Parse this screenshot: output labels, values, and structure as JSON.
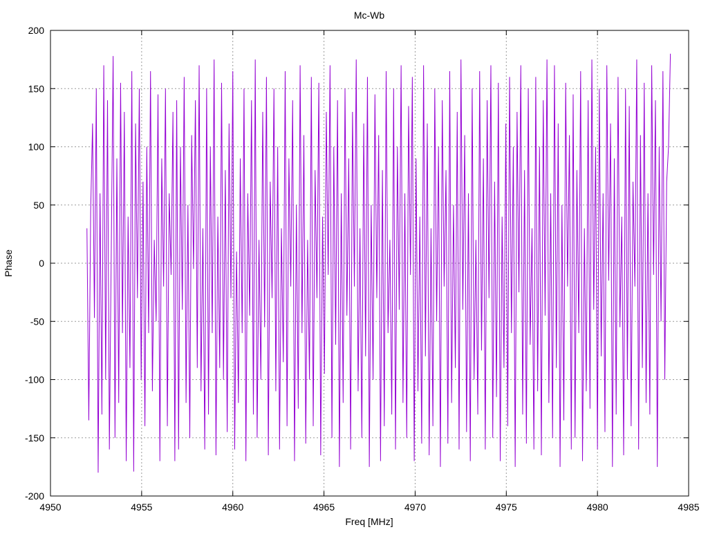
{
  "chart_data": {
    "type": "line",
    "title": "Mc-Wb",
    "xlabel": "Freq [MHz]",
    "ylabel": "Phase",
    "xlim": [
      4950,
      4985
    ],
    "ylim": [
      -200,
      200
    ],
    "x_ticks": [
      4950,
      4955,
      4960,
      4965,
      4970,
      4975,
      4980,
      4985
    ],
    "y_ticks": [
      -200,
      -150,
      -100,
      -50,
      0,
      50,
      100,
      150,
      200
    ],
    "grid": true,
    "series": [
      {
        "name": "Phase",
        "color": "#9400d3",
        "x_start": 4952,
        "x_end": 4984,
        "values": [
          30,
          -135,
          45,
          120,
          -47,
          150,
          -180,
          60,
          -130,
          170,
          -100,
          140,
          -160,
          10,
          178,
          -150,
          90,
          -120,
          155,
          -60,
          130,
          -170,
          40,
          -90,
          165,
          -179,
          120,
          -30,
          150,
          -100,
          70,
          -140,
          100,
          -60,
          165,
          -110,
          20,
          -50,
          145,
          -170,
          90,
          -20,
          150,
          -140,
          60,
          -10,
          130,
          -170,
          140,
          -160,
          100,
          -40,
          160,
          -120,
          50,
          -150,
          110,
          -5,
          140,
          -90,
          170,
          -110,
          30,
          -160,
          150,
          -130,
          100,
          -60,
          175,
          -165,
          40,
          -90,
          155,
          -100,
          80,
          -145,
          120,
          -30,
          165,
          -160,
          10,
          -120,
          90,
          -60,
          150,
          -170,
          60,
          -45,
          140,
          -130,
          175,
          -150,
          20,
          -100,
          130,
          -55,
          160,
          -165,
          70,
          -30,
          150,
          -110,
          100,
          -160,
          30,
          -85,
          165,
          -140,
          90,
          -20,
          140,
          -170,
          50,
          -125,
          170,
          -60,
          110,
          -155,
          20,
          -100,
          160,
          -140,
          80,
          -30,
          155,
          -165,
          40,
          -95,
          130,
          -10,
          170,
          -150,
          100,
          -70,
          140,
          -175,
          60,
          -120,
          150,
          -45,
          90,
          -160,
          130,
          -20,
          175,
          -110,
          30,
          -150,
          120,
          -80,
          160,
          -175,
          50,
          -100,
          145,
          -30,
          110,
          -170,
          80,
          -140,
          165,
          -60,
          20,
          -130,
          150,
          -160,
          100,
          -40,
          170,
          -120,
          60,
          -150,
          135,
          -10,
          160,
          -170,
          90,
          -110,
          40,
          -155,
          170,
          -80,
          120,
          -165,
          30,
          -140,
          150,
          -50,
          100,
          -175,
          140,
          -20,
          80,
          -155,
          165,
          -120,
          50,
          -90,
          130,
          -160,
          175,
          -40,
          110,
          -145,
          60,
          -170,
          150,
          -100,
          20,
          -130,
          165,
          -75,
          90,
          -160,
          140,
          -30,
          170,
          -150,
          70,
          -115,
          155,
          -170,
          40,
          -90,
          120,
          -140,
          160,
          -60,
          100,
          -175,
          130,
          -25,
          170,
          -130,
          80,
          -155,
          150,
          -70,
          30,
          -160,
          160,
          -110,
          100,
          -165,
          140,
          -45,
          175,
          -120,
          60,
          -150,
          170,
          -90,
          120,
          -175,
          50,
          -135,
          155,
          -20,
          110,
          -160,
          145,
          -150,
          80,
          -60,
          165,
          -170,
          30,
          -110,
          140,
          -125,
          175,
          -40,
          100,
          -160,
          150,
          -80,
          60,
          -145,
          170,
          -15,
          120,
          -175,
          90,
          -130,
          160,
          -55,
          40,
          -165,
          150,
          -100,
          135,
          -140,
          70,
          -20,
          175,
          -160,
          110,
          -90,
          155,
          -120,
          60,
          -130,
          170,
          -10,
          140,
          -175,
          100,
          -50,
          165,
          -100,
          70,
          100,
          180
        ]
      }
    ]
  }
}
